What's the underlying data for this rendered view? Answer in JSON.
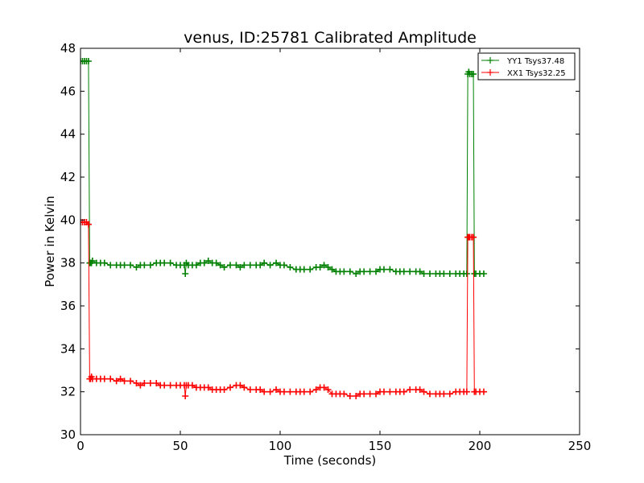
{
  "chart_data": {
    "type": "line",
    "title": "venus, ID:25781 Calibrated Amplitude",
    "xlabel": "Time (seconds)",
    "ylabel": "Power in Kelvin",
    "xlim": [
      0,
      250
    ],
    "ylim": [
      30,
      48
    ],
    "xticks": [
      0,
      50,
      100,
      150,
      200,
      250
    ],
    "yticks": [
      30,
      32,
      34,
      36,
      38,
      40,
      42,
      44,
      46,
      48
    ],
    "grid": false,
    "legend_position": "top-right",
    "marker": "plus",
    "series": [
      {
        "name": "YY1 Tsys37.48",
        "color": "#008000",
        "x": [
          0,
          1,
          2,
          3,
          4,
          4.6,
          5,
          5.5,
          6,
          8,
          10,
          12,
          15,
          18,
          20,
          22,
          25,
          28,
          30,
          32,
          35,
          38,
          40,
          42,
          45,
          48,
          50,
          52,
          52.5,
          53,
          54,
          56,
          58,
          60,
          62,
          64,
          66,
          68,
          70,
          72,
          75,
          78,
          80,
          82,
          85,
          88,
          90,
          92,
          95,
          98,
          100,
          102,
          105,
          108,
          110,
          112,
          115,
          118,
          120,
          122,
          124,
          126,
          128,
          130,
          132,
          135,
          138,
          140,
          142,
          145,
          148,
          150,
          152,
          155,
          158,
          160,
          162,
          165,
          168,
          170,
          172,
          175,
          178,
          180,
          182,
          185,
          188,
          190,
          192,
          193.5,
          194,
          194.5,
          195,
          196,
          196.8,
          197.3,
          198,
          200,
          202
        ],
        "y": [
          47.4,
          47.4,
          47.4,
          47.4,
          47.4,
          38.0,
          38.0,
          38.0,
          38.1,
          38.0,
          38.0,
          38.0,
          37.9,
          37.9,
          37.9,
          37.9,
          37.9,
          37.8,
          37.9,
          37.9,
          37.9,
          38.0,
          38.0,
          38.0,
          38.0,
          37.9,
          37.9,
          37.9,
          37.5,
          38.0,
          37.9,
          37.9,
          37.9,
          38.0,
          38.0,
          38.1,
          38.0,
          38.0,
          37.9,
          37.8,
          37.9,
          37.9,
          37.8,
          37.9,
          37.9,
          37.9,
          37.9,
          38.0,
          37.9,
          38.0,
          37.9,
          37.9,
          37.8,
          37.7,
          37.7,
          37.7,
          37.7,
          37.8,
          37.8,
          37.9,
          37.8,
          37.7,
          37.6,
          37.6,
          37.6,
          37.6,
          37.5,
          37.6,
          37.6,
          37.6,
          37.6,
          37.7,
          37.7,
          37.7,
          37.6,
          37.6,
          37.6,
          37.6,
          37.6,
          37.6,
          37.5,
          37.5,
          37.5,
          37.5,
          37.5,
          37.5,
          37.5,
          37.5,
          37.5,
          37.5,
          46.8,
          46.9,
          46.8,
          46.8,
          46.8,
          37.5,
          37.5,
          37.5,
          37.5
        ]
      },
      {
        "name": "XX1 Tsys32.25",
        "color": "#ff0000",
        "x": [
          0,
          1,
          2,
          3,
          4,
          4.6,
          5,
          5.5,
          6,
          8,
          10,
          12,
          15,
          18,
          20,
          22,
          25,
          28,
          30,
          32,
          35,
          38,
          40,
          42,
          45,
          48,
          50,
          52,
          52.5,
          53,
          54,
          56,
          58,
          60,
          62,
          64,
          66,
          68,
          70,
          72,
          75,
          78,
          80,
          82,
          85,
          88,
          90,
          92,
          95,
          98,
          100,
          102,
          105,
          108,
          110,
          112,
          115,
          118,
          120,
          122,
          124,
          126,
          128,
          130,
          132,
          135,
          138,
          140,
          142,
          145,
          148,
          150,
          152,
          155,
          158,
          160,
          162,
          165,
          168,
          170,
          172,
          175,
          178,
          180,
          182,
          185,
          188,
          190,
          192,
          193.5,
          194,
          194.5,
          195,
          196,
          196.8,
          197.3,
          198,
          200,
          202
        ],
        "y": [
          39.9,
          39.9,
          39.9,
          39.9,
          39.8,
          32.6,
          32.6,
          32.7,
          32.6,
          32.6,
          32.6,
          32.6,
          32.6,
          32.5,
          32.6,
          32.5,
          32.5,
          32.4,
          32.3,
          32.4,
          32.4,
          32.4,
          32.3,
          32.3,
          32.3,
          32.3,
          32.3,
          32.3,
          31.8,
          32.3,
          32.3,
          32.3,
          32.2,
          32.2,
          32.2,
          32.2,
          32.1,
          32.1,
          32.1,
          32.1,
          32.2,
          32.3,
          32.3,
          32.2,
          32.1,
          32.1,
          32.1,
          32.0,
          32.0,
          32.1,
          32.0,
          32.0,
          32.0,
          32.0,
          32.0,
          32.0,
          32.0,
          32.1,
          32.2,
          32.2,
          32.1,
          31.9,
          31.9,
          31.9,
          31.9,
          31.8,
          31.8,
          31.9,
          31.9,
          31.9,
          31.9,
          32.0,
          32.0,
          32.0,
          32.0,
          32.0,
          32.0,
          32.1,
          32.1,
          32.1,
          32.0,
          31.9,
          31.9,
          31.9,
          31.9,
          31.9,
          32.0,
          32.0,
          32.0,
          32.0,
          39.2,
          39.2,
          39.2,
          39.2,
          39.2,
          32.0,
          32.0,
          32.0,
          32.0
        ]
      }
    ]
  }
}
